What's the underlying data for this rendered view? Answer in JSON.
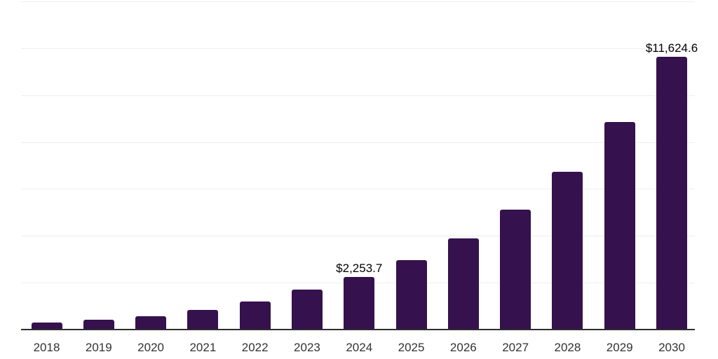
{
  "chart_data": {
    "type": "bar",
    "title": "",
    "xlabel": "",
    "ylabel": "",
    "categories": [
      "2018",
      "2019",
      "2020",
      "2021",
      "2022",
      "2023",
      "2024",
      "2025",
      "2026",
      "2027",
      "2028",
      "2029",
      "2030"
    ],
    "values": [
      300,
      405,
      580,
      825,
      1210,
      1720,
      2253.7,
      2962.4,
      3894.1,
      5118.8,
      6728.6,
      8844.6,
      11624.6
    ],
    "data_labels": {
      "2024": "$2,253.7",
      "2030": "$11,624.6"
    },
    "ylim": [
      0,
      14000
    ],
    "grid": {
      "show": true,
      "step": 2000,
      "color": "#eeeeee"
    },
    "legend": "none",
    "bar_color": "#35114D",
    "axis_color": "#2e2e2e",
    "tick_label_color": "#333333",
    "data_label_color": "#000000",
    "background_color": "#ffffff"
  }
}
